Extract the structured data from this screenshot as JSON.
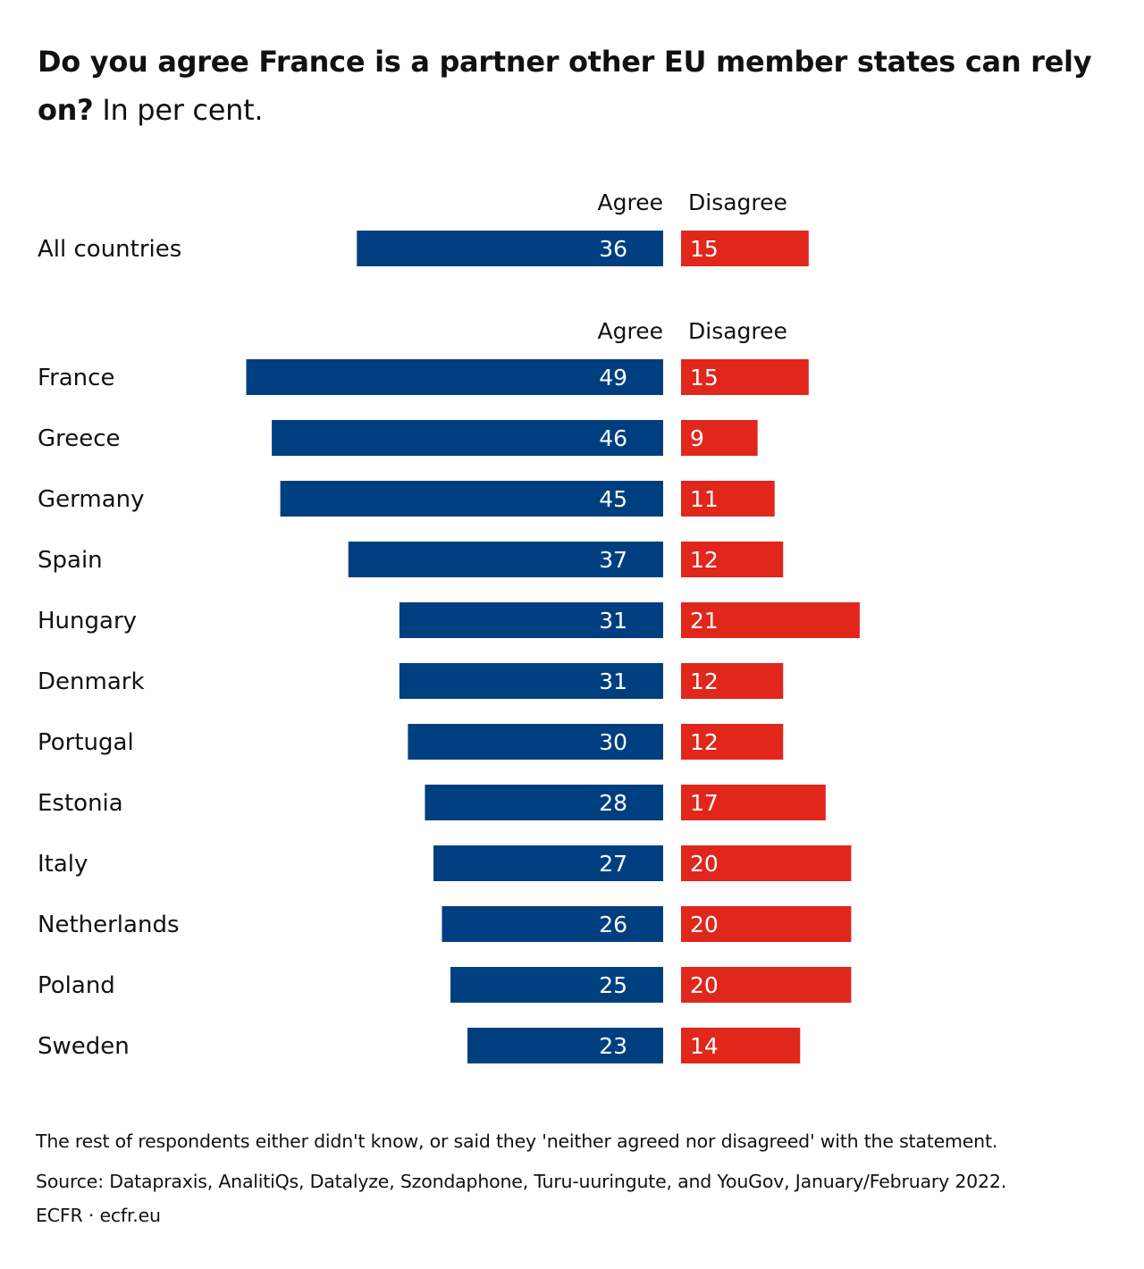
{
  "title": {
    "bold": "Do you agree France is a partner other EU member states can rely on?",
    "normal": "In per cent."
  },
  "colors": {
    "agree": "#003f7f",
    "disagree": "#e1261c",
    "text": "#111111"
  },
  "footer": {
    "note": "The rest of respondents either didn't know, or said they 'neither agreed nor disagreed' with the statement.",
    "source": "Source: Datapraxis, AnalitiQs, Datalyze, Szondaphone, Turu-uuringute, and YouGov, January/February 2022.",
    "credit": "ECFR · ecfr.eu"
  },
  "chart_data": {
    "type": "bar",
    "orientation": "horizontal-diverging",
    "series": [
      {
        "name": "Agree",
        "color": "#003f7f"
      },
      {
        "name": "Disagree",
        "color": "#e1261c"
      }
    ],
    "groups": [
      {
        "rows": [
          {
            "label": "All countries",
            "agree": 36,
            "disagree": 15
          }
        ]
      },
      {
        "rows": [
          {
            "label": "France",
            "agree": 49,
            "disagree": 15
          },
          {
            "label": "Greece",
            "agree": 46,
            "disagree": 9
          },
          {
            "label": "Germany",
            "agree": 45,
            "disagree": 11
          },
          {
            "label": "Spain",
            "agree": 37,
            "disagree": 12
          },
          {
            "label": "Hungary",
            "agree": 31,
            "disagree": 21
          },
          {
            "label": "Denmark",
            "agree": 31,
            "disagree": 12
          },
          {
            "label": "Portugal",
            "agree": 30,
            "disagree": 12
          },
          {
            "label": "Estonia",
            "agree": 28,
            "disagree": 17
          },
          {
            "label": "Italy",
            "agree": 27,
            "disagree": 20
          },
          {
            "label": "Netherlands",
            "agree": 26,
            "disagree": 20
          },
          {
            "label": "Poland",
            "agree": 25,
            "disagree": 20
          },
          {
            "label": "Sweden",
            "agree": 23,
            "disagree": 14
          }
        ]
      }
    ]
  }
}
